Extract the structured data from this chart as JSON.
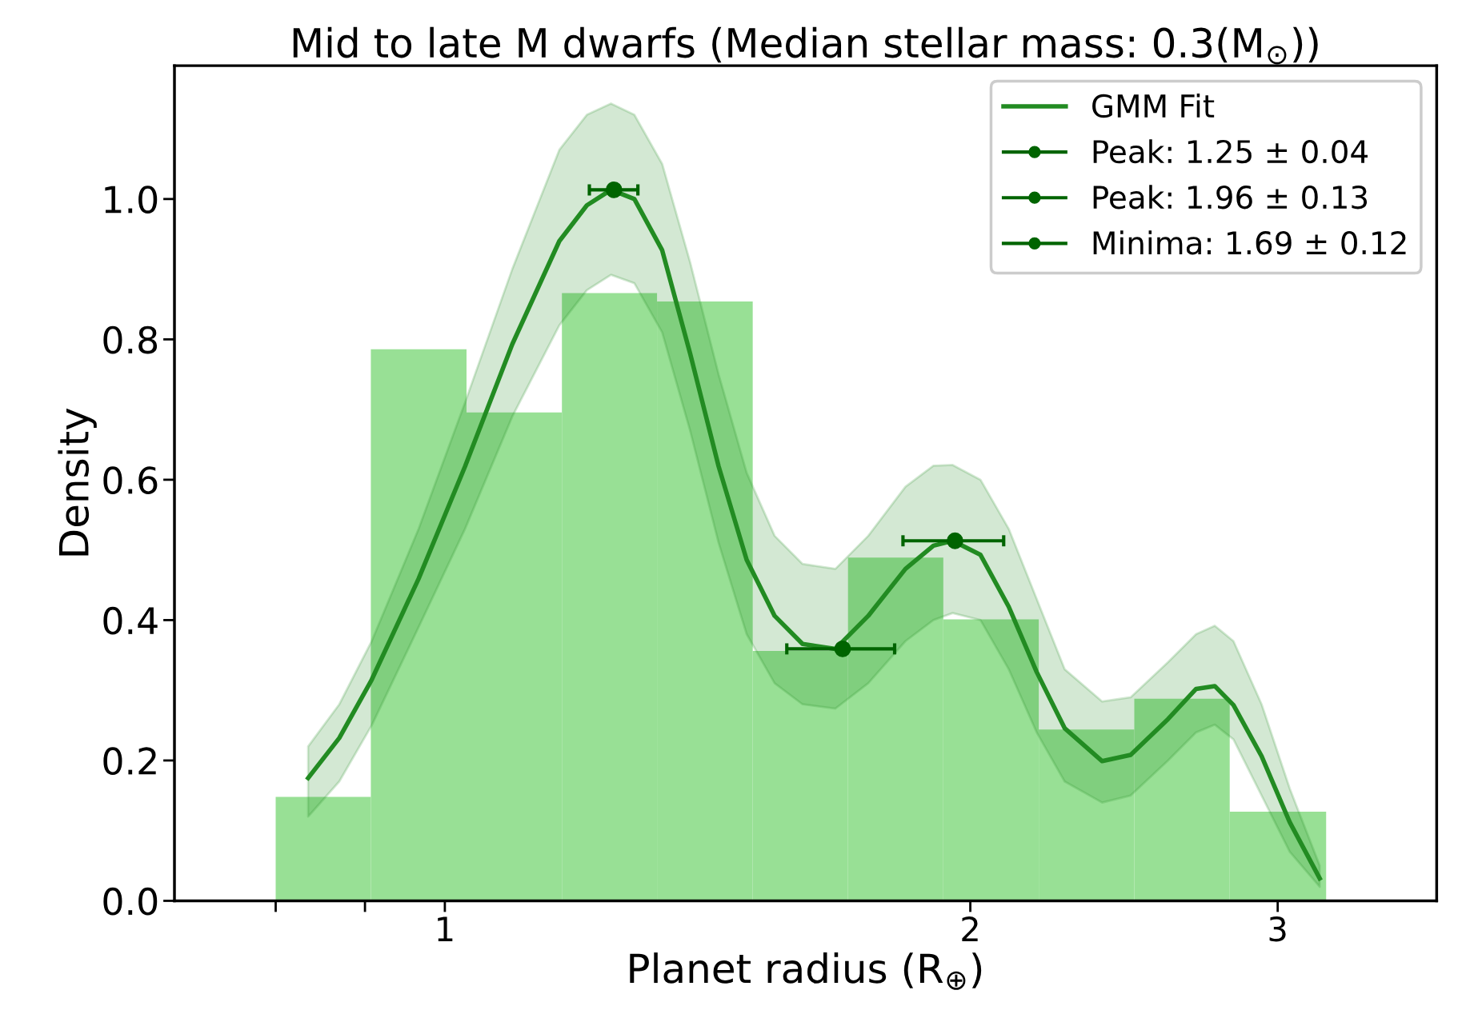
{
  "chart_data": {
    "type": "histogram",
    "title": "Mid to late M dwarfs (Median stellar mass: 0.3(M$_{⊙}$))",
    "xlabel": "Planet radius (R$_{⊕}$)",
    "ylabel": "Density",
    "bins": [
      0.8,
      0.907,
      1.029,
      1.167,
      1.323,
      1.501,
      1.702,
      1.93,
      2.189,
      2.483,
      2.816,
      3.198
    ],
    "values": [
      0.148,
      0.786,
      0.696,
      0.866,
      0.854,
      0.356,
      0.489,
      0.401,
      0.244,
      0.288,
      0.127
    ],
    "color": "#98e095",
    "series": [
      {
        "type": "line",
        "name": "GMM Fit",
        "color": "#228b22",
        "x": [
          0.835,
          0.87,
          0.908,
          0.966,
          1.027,
          1.093,
          1.163,
          1.206,
          1.245,
          1.284,
          1.332,
          1.382,
          1.435,
          1.489,
          1.545,
          1.603,
          1.674,
          1.748,
          1.836,
          1.905,
          1.954,
          2.027,
          2.104,
          2.183,
          2.265,
          2.38,
          2.471,
          2.596,
          2.694,
          2.761,
          2.83,
          2.937,
          3.048,
          3.171
        ],
        "values": [
          0.175,
          0.232,
          0.315,
          0.459,
          0.619,
          0.793,
          0.94,
          0.991,
          1.013,
          1.0,
          0.927,
          0.78,
          0.619,
          0.486,
          0.406,
          0.366,
          0.359,
          0.406,
          0.473,
          0.506,
          0.513,
          0.493,
          0.419,
          0.326,
          0.246,
          0.199,
          0.208,
          0.259,
          0.302,
          0.306,
          0.279,
          0.206,
          0.112,
          0.032
        ],
        "upper": [
          0.22,
          0.28,
          0.37,
          0.53,
          0.71,
          0.9,
          1.07,
          1.12,
          1.136,
          1.12,
          1.05,
          0.91,
          0.75,
          0.61,
          0.52,
          0.48,
          0.473,
          0.52,
          0.59,
          0.62,
          0.621,
          0.6,
          0.53,
          0.43,
          0.33,
          0.284,
          0.29,
          0.34,
          0.38,
          0.392,
          0.37,
          0.28,
          0.16,
          0.05
        ],
        "lower": [
          0.12,
          0.17,
          0.25,
          0.39,
          0.53,
          0.69,
          0.82,
          0.87,
          0.892,
          0.88,
          0.81,
          0.67,
          0.51,
          0.38,
          0.31,
          0.28,
          0.274,
          0.31,
          0.37,
          0.4,
          0.41,
          0.4,
          0.33,
          0.24,
          0.17,
          0.14,
          0.15,
          0.2,
          0.24,
          0.251,
          0.23,
          0.15,
          0.07,
          0.02
        ]
      },
      {
        "type": "scatter",
        "name": "Peak: 1.25 ± 0.04",
        "color": "#006400",
        "marker": "circle",
        "x": [
          1.25
        ],
        "values": [
          1.013
        ],
        "xerrors": [
          0.04
        ]
      },
      {
        "type": "scatter",
        "name": "Peak: 1.96 ± 0.13",
        "color": "#006400",
        "marker": "circle",
        "x": [
          1.96
        ],
        "values": [
          0.513
        ],
        "xerrors": [
          0.13
        ]
      },
      {
        "type": "scatter",
        "name": "Minima: 1.69 ± 0.12",
        "color": "#006400",
        "marker": "circle",
        "x": [
          1.69
        ],
        "values": [
          0.359
        ],
        "xerrors": [
          0.12
        ]
      }
    ],
    "log": "x",
    "xlim": [
      0.7,
      3.7
    ],
    "xticks": [
      {
        "value": 0.8,
        "label": null
      },
      {
        "value": 0.9,
        "label": null
      },
      1,
      2,
      3
    ],
    "ylim": [
      0,
      1.19
    ],
    "yticks": [
      {
        "value": 0,
        "label": "0.0"
      },
      {
        "value": 0.2,
        "label": "0.2"
      },
      {
        "value": 0.4,
        "label": "0.4"
      },
      {
        "value": 0.6,
        "label": "0.6"
      },
      {
        "value": 0.8,
        "label": "0.8"
      },
      {
        "value": 1.0,
        "label": "1.0"
      }
    ],
    "grid": false,
    "legend": "top right"
  }
}
